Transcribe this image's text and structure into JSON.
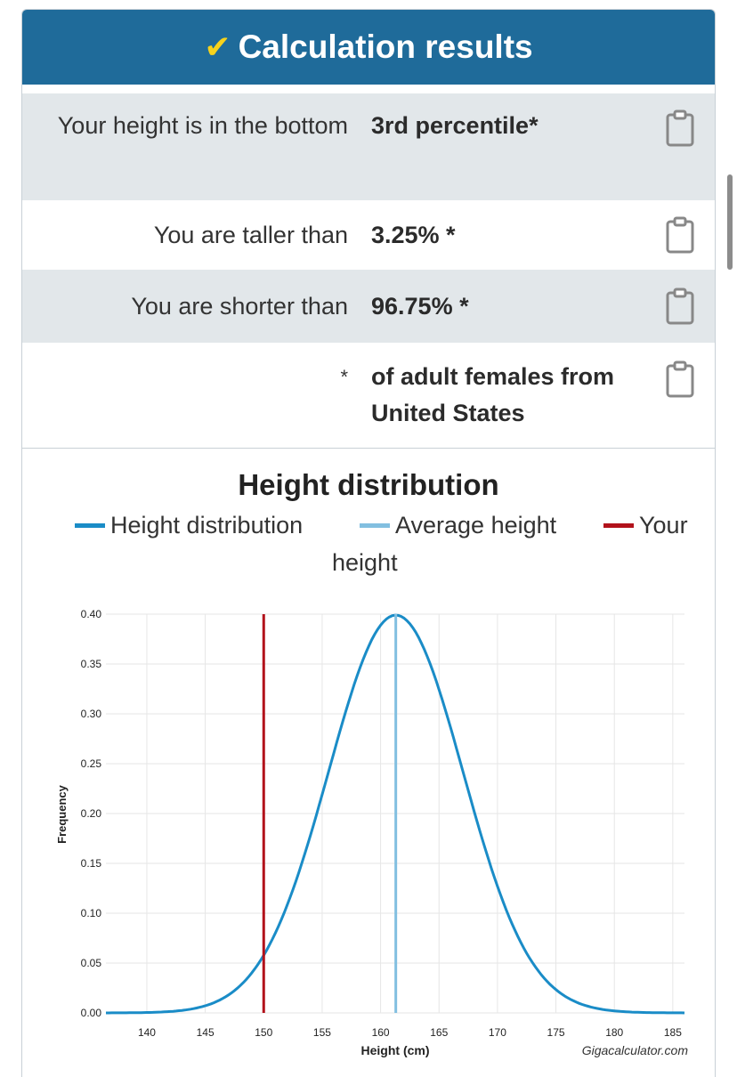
{
  "header": {
    "title": "Calculation results",
    "check_icon": "✔"
  },
  "results": [
    {
      "label": "Your height is in the bottom",
      "value": "3rd percentile*"
    },
    {
      "label": "You are taller than",
      "value": "3.25% *"
    },
    {
      "label": "You are shorter than",
      "value": "96.75% *"
    },
    {
      "label": "*",
      "value": "of adult females from United States"
    }
  ],
  "chart_title": "Height distribution",
  "legend": {
    "distribution": "Height distribution",
    "average": "Average height",
    "yours_line1": "Your",
    "yours_line2": "height"
  },
  "watermark": "Gigacalculator.com",
  "colors": {
    "header": "#1f6b9a",
    "distribution": "#1a8cc7",
    "average": "#82bfe0",
    "yours": "#b2121b",
    "check": "#f6d21c"
  },
  "chart_data": {
    "type": "line",
    "xlabel": "Height (cm)",
    "ylabel": "Frequency",
    "xlim": [
      136.5,
      186
    ],
    "ylim": [
      0,
      0.4
    ],
    "x_ticks": [
      140,
      145,
      150,
      155,
      160,
      165,
      170,
      175,
      180,
      185
    ],
    "y_ticks": [
      "0.00",
      "0.05",
      "0.10",
      "0.15",
      "0.20",
      "0.25",
      "0.30",
      "0.35",
      "0.40"
    ],
    "distribution": {
      "mean": 161.3,
      "sd": 5.75,
      "peak": 0.399
    },
    "average_height": 161.3,
    "your_height": 150,
    "series": [
      {
        "name": "Height distribution",
        "x": [
          136.5,
          140,
          145,
          150,
          155,
          158,
          161.3,
          165,
          170,
          175,
          180,
          186
        ],
        "y": [
          0.0,
          0.0,
          0.02,
          0.07,
          0.22,
          0.34,
          0.4,
          0.3,
          0.13,
          0.03,
          0.0,
          0.0
        ]
      }
    ]
  }
}
